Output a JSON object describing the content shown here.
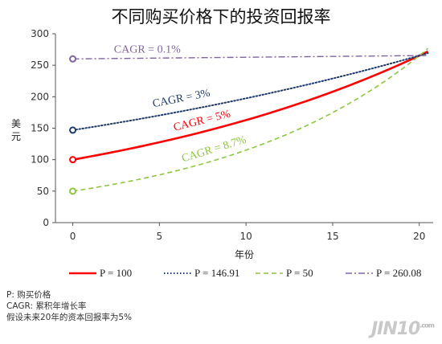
{
  "chart_data": {
    "type": "line",
    "title": "不同购买价格下的投资回报率",
    "xlabel": "年份",
    "ylabel": "美元",
    "xlim": [
      -1,
      20.8
    ],
    "ylim": [
      0,
      300
    ],
    "xticks": [
      0,
      5,
      10,
      15,
      20
    ],
    "yticks": [
      0,
      50,
      100,
      150,
      200,
      250,
      300
    ],
    "grid": false,
    "series": [
      {
        "name": "P = 100",
        "color": "#ff0000",
        "style": "solid",
        "start": 100,
        "rate": 0.05,
        "x": [
          0,
          2,
          4,
          6,
          8,
          10,
          12,
          14,
          16,
          18,
          20
        ],
        "values": [
          100,
          110.3,
          121.6,
          134.0,
          147.7,
          162.9,
          179.6,
          198.0,
          218.3,
          240.7,
          265.3
        ],
        "annotation": "CAGR = 5%"
      },
      {
        "name": "P = 146.91",
        "color": "#1f3b6b",
        "style": "dotted",
        "start": 146.91,
        "rate": 0.03,
        "x": [
          0,
          2,
          4,
          6,
          8,
          10,
          12,
          14,
          16,
          18,
          20
        ],
        "values": [
          146.9,
          155.9,
          165.3,
          175.4,
          186.1,
          197.4,
          209.5,
          222.2,
          235.8,
          250.1,
          265.3
        ],
        "annotation": "CAGR = 3%"
      },
      {
        "name": "P = 50",
        "color": "#8dc63f",
        "style": "dashed",
        "start": 50,
        "rate": 0.087,
        "x": [
          0,
          2,
          4,
          6,
          8,
          10,
          12,
          14,
          16,
          18,
          20
        ],
        "values": [
          50,
          59.1,
          69.8,
          82.5,
          97.5,
          115.2,
          136.1,
          160.8,
          190.0,
          224.5,
          265.3
        ],
        "annotation": "CAGR = 8.7%"
      },
      {
        "name": "P = 260.08",
        "color": "#8064a2",
        "style": "dashdot",
        "start": 260.08,
        "rate": 0.001,
        "x": [
          0,
          2,
          4,
          6,
          8,
          10,
          12,
          14,
          16,
          18,
          20
        ],
        "values": [
          260.1,
          260.6,
          261.1,
          261.6,
          262.2,
          262.7,
          263.2,
          263.7,
          264.2,
          264.8,
          265.3
        ],
        "annotation": "CAGR = 0.1%"
      }
    ],
    "legend": "bottom"
  },
  "notes": [
    "P: 购买价格",
    "CAGR: 累积年增长率",
    "假设未来20年的资本回报率为5%"
  ],
  "watermark": {
    "text": "JIN10.com",
    "main": "JIN10",
    "sup": ".com"
  }
}
